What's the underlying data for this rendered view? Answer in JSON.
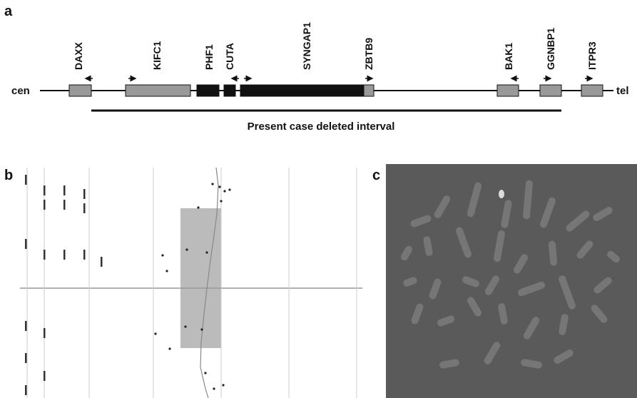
{
  "panel_a": {
    "label": "a",
    "genes": [
      "DAXX",
      "KIFC1",
      "PHF1",
      "CUTA",
      "SYNGAP1",
      "ZBTB9",
      "BAK1",
      "GGNBP1",
      "ITPR3"
    ],
    "cen": "cen",
    "tel": "tel",
    "interval": "Present case deleted interval"
  },
  "panel_b": {
    "label": "b"
  },
  "panel_c": {
    "label": "c"
  }
}
